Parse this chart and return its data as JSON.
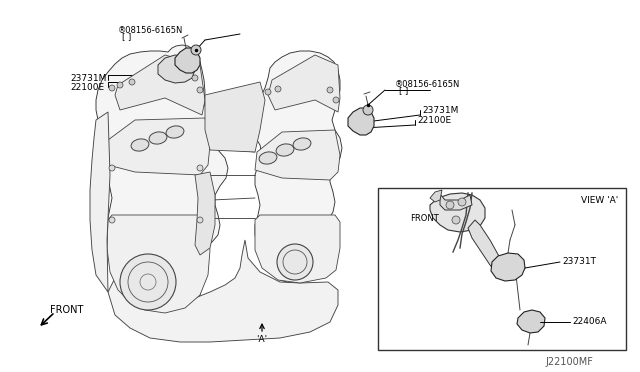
{
  "bg_color": "#ffffff",
  "line_color": "#000000",
  "text_color": "#000000",
  "fig_width": 6.4,
  "fig_height": 3.72,
  "dpi": 100,
  "labels": {
    "bolt_left": "®08156-6165N",
    "bolt_left2": "[ ]",
    "bolt_right": "®08156-6165N",
    "bolt_right2": "[ ]",
    "23731M_left": "23731M",
    "22100E_left": "22100E",
    "23731M_right": "23731M",
    "22100E_right": "22100E",
    "23731T": "23731T",
    "22406A": "22406A",
    "front_main": "FRONT",
    "front_inset": "FRONT",
    "view_a": "VIEW 'A'",
    "point_a": "'A'",
    "part_num": "J22100MF"
  }
}
